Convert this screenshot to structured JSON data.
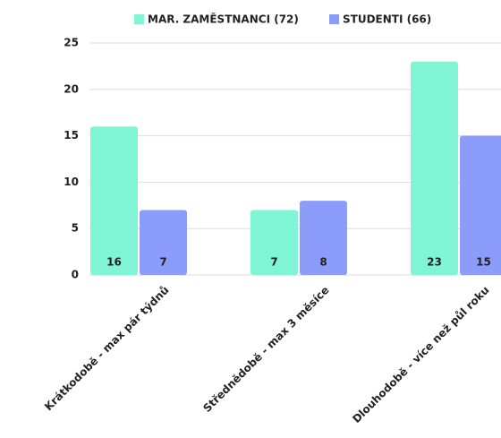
{
  "chart_data": {
    "type": "bar",
    "categories": [
      "Krátkodobě - max pár týdnů",
      "Střednědobě - max 3 měsíce",
      "Dlouhodobě - více než půl roku"
    ],
    "series": [
      {
        "name": "MAR. ZAMĚSTNANCI (72)",
        "color": "#7ff5d6",
        "values": [
          16,
          7,
          23
        ]
      },
      {
        "name": "STUDENTI (66)",
        "color": "#8c9cfb",
        "values": [
          7,
          8,
          15
        ]
      }
    ],
    "ylim": [
      0,
      25
    ],
    "yticks": [
      0,
      5,
      10,
      15,
      20,
      25
    ],
    "grid": true,
    "legend": "top"
  }
}
